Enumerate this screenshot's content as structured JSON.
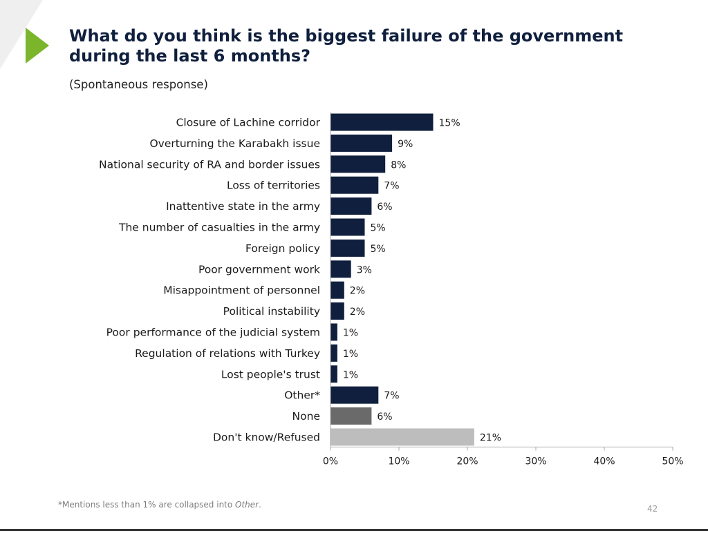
{
  "page": {
    "title": "What do you think is the biggest failure of the government during the last 6 months?",
    "subtitle": "(Spontaneous response)",
    "footnote_main": "*Mentions less than 1% are collapsed into ",
    "footnote_em": "Other",
    "footnote_end": ".",
    "page_number": "42"
  },
  "colors": {
    "primary_bar": "#0f1f3d",
    "none_bar": "#6a6a6a",
    "dont_know_bar": "#bdbdbd",
    "accent": "#7ab52c"
  },
  "chart_data": {
    "type": "bar",
    "orientation": "horizontal",
    "categories": [
      "Closure of Lachine corridor",
      "Overturning the Karabakh issue",
      "National security of RA and border issues",
      "Loss of territories",
      "Inattentive state in the army",
      "The number of casualties in the army",
      "Foreign policy",
      "Poor government work",
      "Misappointment of personnel",
      "Political instability",
      "Poor performance of the judicial system",
      "Regulation of relations with Turkey",
      "Lost people's trust",
      "Other*",
      "None",
      "Don't know/Refused"
    ],
    "values": [
      15,
      9,
      8,
      7,
      6,
      5,
      5,
      3,
      2,
      2,
      1,
      1,
      1,
      7,
      6,
      21
    ],
    "value_labels": [
      "15%",
      "9%",
      "8%",
      "7%",
      "6%",
      "5%",
      "5%",
      "3%",
      "2%",
      "2%",
      "1%",
      "1%",
      "1%",
      "7%",
      "6%",
      "21%"
    ],
    "bar_colors": [
      "#0f1f3d",
      "#0f1f3d",
      "#0f1f3d",
      "#0f1f3d",
      "#0f1f3d",
      "#0f1f3d",
      "#0f1f3d",
      "#0f1f3d",
      "#0f1f3d",
      "#0f1f3d",
      "#0f1f3d",
      "#0f1f3d",
      "#0f1f3d",
      "#0f1f3d",
      "#6a6a6a",
      "#bdbdbd"
    ],
    "xlim": [
      0,
      50
    ],
    "xticks": [
      0,
      10,
      20,
      30,
      40,
      50
    ],
    "xtick_labels": [
      "0%",
      "10%",
      "20%",
      "30%",
      "40%",
      "50%"
    ],
    "grid": false
  }
}
